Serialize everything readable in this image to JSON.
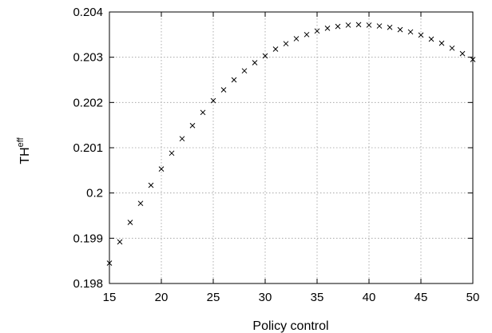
{
  "chart_data": {
    "type": "scatter",
    "xlabel": "Policy control",
    "ylabel": "TH",
    "ylabel_superscript": "eff",
    "xlim": [
      15,
      50
    ],
    "ylim": [
      0.198,
      0.204
    ],
    "x_ticks": [
      "15",
      "20",
      "25",
      "30",
      "35",
      "40",
      "45",
      "50"
    ],
    "y_ticks": [
      "0.198",
      "0.199",
      "0.2",
      "0.201",
      "0.202",
      "0.203",
      "0.204"
    ],
    "grid": true,
    "marker": "x",
    "series": [
      {
        "x": [
          15,
          16,
          17,
          18,
          19,
          20,
          21,
          22,
          23,
          24,
          25,
          26,
          27,
          28,
          29,
          30,
          31,
          32,
          33,
          34,
          35,
          36,
          37,
          38,
          39,
          40,
          41,
          42,
          43,
          44,
          45,
          46,
          47,
          48,
          49,
          50
        ],
        "y": [
          0.19845,
          0.19892,
          0.19935,
          0.19977,
          0.20017,
          0.20053,
          0.20088,
          0.2012,
          0.20149,
          0.20178,
          0.20204,
          0.20228,
          0.2025,
          0.2027,
          0.20288,
          0.20303,
          0.20318,
          0.2033,
          0.20341,
          0.2035,
          0.20358,
          0.20364,
          0.20368,
          0.20371,
          0.20372,
          0.20371,
          0.20369,
          0.20366,
          0.20361,
          0.20356,
          0.20349,
          0.2034,
          0.20331,
          0.2032,
          0.20308,
          0.20295
        ]
      }
    ]
  }
}
